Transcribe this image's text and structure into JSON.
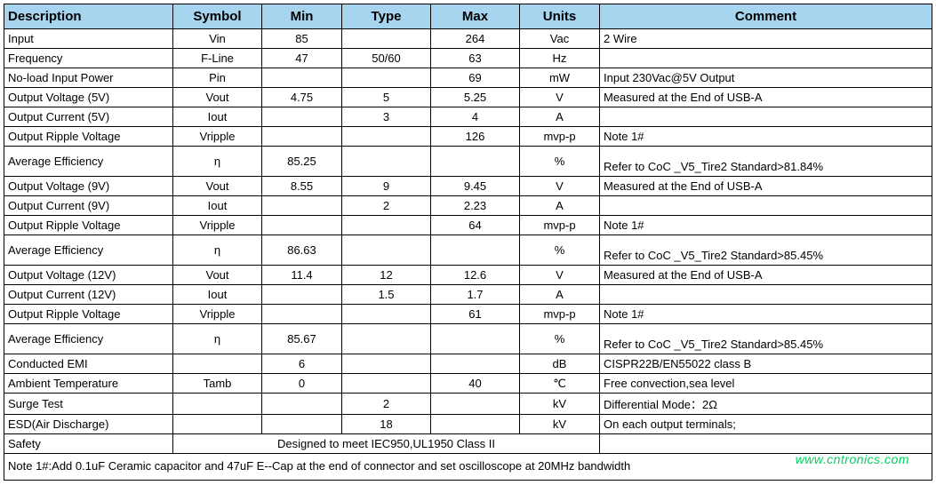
{
  "styles": {
    "header_bg": "#a7d5f0",
    "border_color": "#000000",
    "watermark_color": "#00d060"
  },
  "columns": [
    {
      "key": "description",
      "label": "Description"
    },
    {
      "key": "symbol",
      "label": "Symbol"
    },
    {
      "key": "min",
      "label": "Min"
    },
    {
      "key": "type",
      "label": "Type"
    },
    {
      "key": "max",
      "label": "Max"
    },
    {
      "key": "units",
      "label": "Units"
    },
    {
      "key": "comment",
      "label": "Comment"
    }
  ],
  "rows": [
    {
      "description": "Input",
      "symbol": "Vin",
      "min": "85",
      "type": "",
      "max": "264",
      "units": "Vac",
      "comment": "2 Wire"
    },
    {
      "description": "Frequency",
      "symbol": "F-Line",
      "min": "47",
      "type": "50/60",
      "max": "63",
      "units": "Hz",
      "comment": ""
    },
    {
      "description": "No-load Input Power",
      "symbol": "Pin",
      "min": "",
      "type": "",
      "max": "69",
      "units": "mW",
      "comment": "Input 230Vac@5V Output"
    },
    {
      "description": "Output Voltage (5V)",
      "symbol": "Vout",
      "min": "4.75",
      "type": "5",
      "max": "5.25",
      "units": "V",
      "comment": "Measured at the End of USB-A"
    },
    {
      "description": "Output Current (5V)",
      "symbol": "Iout",
      "min": "",
      "type": "3",
      "max": "4",
      "units": "A",
      "comment": ""
    },
    {
      "description": "Output Ripple Voltage",
      "symbol": "Vripple",
      "min": "",
      "type": "",
      "max": "126",
      "units": "mvp-p",
      "comment": "Note 1#"
    },
    {
      "description": "Average Efficiency",
      "symbol": "η",
      "min": "85.25",
      "type": "",
      "max": "",
      "units": "%",
      "comment": "Refer to CoC _V5_Tire2 Standard>81.84%",
      "tall": true
    },
    {
      "description": "Output Voltage (9V)",
      "symbol": "Vout",
      "min": "8.55",
      "type": "9",
      "max": "9.45",
      "units": "V",
      "comment": "Measured at the End of USB-A"
    },
    {
      "description": "Output Current (9V)",
      "symbol": "Iout",
      "min": "",
      "type": "2",
      "max": "2.23",
      "units": "A",
      "comment": ""
    },
    {
      "description": "Output Ripple Voltage",
      "symbol": "Vripple",
      "min": "",
      "type": "",
      "max": "64",
      "units": "mvp-p",
      "comment": "Note 1#"
    },
    {
      "description": "Average Efficiency",
      "symbol": "η",
      "min": "86.63",
      "type": "",
      "max": "",
      "units": "%",
      "comment": "Refer to CoC _V5_Tire2 Standard>85.45%",
      "tall": true
    },
    {
      "description": "Output Voltage (12V)",
      "symbol": "Vout",
      "min": "11.4",
      "type": "12",
      "max": "12.6",
      "units": "V",
      "comment": "Measured at the End of USB-A"
    },
    {
      "description": "Output Current (12V)",
      "symbol": "Iout",
      "min": "",
      "type": "1.5",
      "max": "1.7",
      "units": "A",
      "comment": ""
    },
    {
      "description": "Output Ripple Voltage",
      "symbol": "Vripple",
      "min": "",
      "type": "",
      "max": "61",
      "units": "mvp-p",
      "comment": "Note 1#"
    },
    {
      "description": "Average Efficiency",
      "symbol": "η",
      "min": "85.67",
      "type": "",
      "max": "",
      "units": "%",
      "comment": "Refer to CoC _V5_Tire2 Standard>85.45%",
      "tall": true
    },
    {
      "description": "Conducted EMI",
      "symbol": "",
      "min": "6",
      "type": "",
      "max": "",
      "units": "dB",
      "comment": "CISPR22B/EN55022 class B"
    },
    {
      "description": "Ambient Temperature",
      "symbol": "Tamb",
      "min": "0",
      "type": "",
      "max": "40",
      "units": "℃",
      "comment": "Free convection,sea level"
    },
    {
      "description": "Surge Test",
      "symbol": "",
      "min": "",
      "type": "2",
      "max": "",
      "units": "kV",
      "comment": "Differential Mode：2Ω"
    },
    {
      "description": "ESD(Air Discharge)",
      "symbol": "",
      "min": "",
      "type": "18",
      "max": "",
      "units": "kV",
      "comment": "On each output terminals;"
    }
  ],
  "safety_row": {
    "description": "Safety",
    "merged_text": "Designed to meet IEC950,UL1950 Class II"
  },
  "footnote": "Note 1#:Add 0.1uF Ceramic capacitor and 47uF E--Cap at the end of connector and set oscilloscope at 20MHz bandwidth",
  "watermark": "www.cntronics.com"
}
